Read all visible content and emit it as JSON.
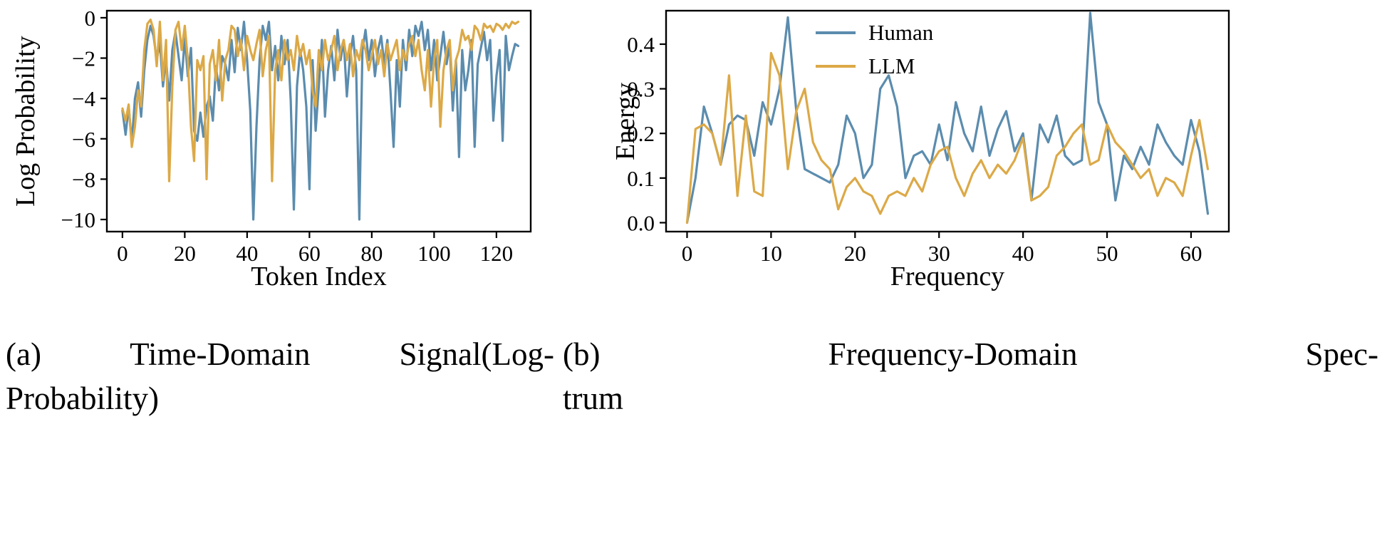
{
  "colors": {
    "human": "#5b8cae",
    "llm": "#dca947",
    "axis": "#000000",
    "background": "#ffffff"
  },
  "captions": {
    "a": {
      "line1": "(a) Time-Domain Signal(Log-",
      "line2": "Probability)"
    },
    "b": {
      "line1": "(b) Frequency-Domain Spec-",
      "line2": "trum"
    }
  },
  "chart_data": [
    {
      "id": "time-domain",
      "type": "line",
      "title": "",
      "xlabel": "Token Index",
      "ylabel": "Log Probability",
      "xlim": [
        -5,
        131
      ],
      "ylim": [
        -10.6,
        0.35
      ],
      "grid": false,
      "legend": null,
      "xticks": [
        {
          "v": 0,
          "label": "0"
        },
        {
          "v": 20,
          "label": "20"
        },
        {
          "v": 40,
          "label": "40"
        },
        {
          "v": 60,
          "label": "60"
        },
        {
          "v": 80,
          "label": "80"
        },
        {
          "v": 100,
          "label": "100"
        },
        {
          "v": 120,
          "label": "120"
        }
      ],
      "yticks": [
        {
          "v": 0,
          "label": "0"
        },
        {
          "v": -2,
          "label": "−2"
        },
        {
          "v": -4,
          "label": "−4"
        },
        {
          "v": -6,
          "label": "−6"
        },
        {
          "v": -8,
          "label": "−8"
        },
        {
          "v": -10,
          "label": "−10"
        }
      ],
      "series": [
        {
          "name": "Human",
          "color": "#5b8cae",
          "values": [
            -4.6,
            -5.8,
            -4.4,
            -6.2,
            -4.0,
            -3.2,
            -4.9,
            -2.6,
            -1.1,
            -0.4,
            -0.9,
            -2.1,
            -1.2,
            -3.4,
            -2.0,
            -4.1,
            -1.6,
            -0.7,
            -1.9,
            -3.1,
            -1.0,
            -2.9,
            -1.5,
            -5.6,
            -6.1,
            -4.7,
            -5.9,
            -4.4,
            -3.9,
            -5.1,
            -2.4,
            -3.6,
            -1.9,
            -2.3,
            -3.1,
            -1.1,
            -2.7,
            -0.5,
            -1.6,
            -0.2,
            -2.1,
            -4.6,
            -10.0,
            -5.4,
            -2.1,
            -0.4,
            -1.1,
            -0.2,
            -2.6,
            -1.4,
            -3.1,
            -0.9,
            -2.3,
            -1.1,
            -4.1,
            -9.5,
            -3.4,
            -1.6,
            -2.6,
            -4.4,
            -8.5,
            -2.1,
            -5.6,
            -3.4,
            -1.1,
            -4.9,
            -2.6,
            -1.4,
            -3.1,
            -0.6,
            -2.1,
            -1.1,
            -3.9,
            -1.9,
            -0.9,
            -2.6,
            -10.0,
            -1.6,
            -0.6,
            -2.1,
            -1.1,
            -2.9,
            -1.6,
            -0.9,
            -2.3,
            -1.1,
            -3.6,
            -6.4,
            -2.1,
            -4.4,
            -1.1,
            -2.6,
            -0.6,
            -1.9,
            -0.4,
            -0.9,
            -0.2,
            -1.6,
            -0.6,
            -2.6,
            -1.1,
            -3.1,
            -1.9,
            -0.7,
            -2.3,
            -1.3,
            -4.6,
            -2.1,
            -6.9,
            -1.6,
            -3.6,
            -2.6,
            -1.1,
            -6.4,
            -2.3,
            -1.5,
            -0.7,
            -2.1,
            -1.1,
            -5.1,
            -2.9,
            -1.6,
            -6.1,
            -0.9,
            -2.6,
            -1.9,
            -1.3,
            -1.4
          ]
        },
        {
          "name": "LLM",
          "color": "#dca947",
          "values": [
            -4.5,
            -5.1,
            -4.3,
            -6.4,
            -5.4,
            -3.6,
            -4.4,
            -1.6,
            -0.3,
            -0.1,
            -0.6,
            -2.4,
            -0.2,
            -3.1,
            -1.1,
            -8.1,
            -3.4,
            -0.6,
            -0.2,
            -1.6,
            -0.4,
            -2.1,
            -5.4,
            -7.1,
            -2.1,
            -2.6,
            -1.9,
            -8.0,
            -2.3,
            -1.6,
            -3.1,
            -1.1,
            -4.1,
            -2.1,
            -1.6,
            -0.4,
            -0.6,
            -1.9,
            -1.1,
            -2.6,
            -0.9,
            -1.6,
            -2.1,
            -1.3,
            -0.6,
            -2.9,
            -1.6,
            -0.9,
            -8.1,
            -2.6,
            -1.6,
            -3.1,
            -1.1,
            -2.1,
            -1.6,
            -2.6,
            -0.9,
            -1.9,
            -1.3,
            -2.3,
            -1.6,
            -3.6,
            -4.4,
            -1.6,
            -2.6,
            -1.1,
            -2.1,
            -1.6,
            -0.9,
            -2.6,
            -1.6,
            -1.1,
            -2.1,
            -1.3,
            -2.9,
            -1.6,
            -2.1,
            -1.1,
            -1.6,
            -2.6,
            -1.9,
            -1.1,
            -2.3,
            -1.6,
            -2.9,
            -1.3,
            -2.1,
            -1.6,
            -1.1,
            -2.6,
            -1.6,
            -2.1,
            -1.3,
            -0.9,
            -1.9,
            -1.1,
            -2.6,
            -3.6,
            -1.6,
            -4.4,
            -2.1,
            -1.1,
            -5.4,
            -2.6,
            -1.6,
            -1.1,
            -3.6,
            -2.1,
            -1.6,
            -0.6,
            -1.1,
            -0.9,
            -1.6,
            -0.4,
            -0.6,
            -1.1,
            -0.3,
            -0.5,
            -0.4,
            -0.7,
            -0.3,
            -0.4,
            -0.6,
            -0.3,
            -0.5,
            -0.2,
            -0.3,
            -0.2
          ]
        }
      ]
    },
    {
      "id": "frequency-domain",
      "type": "line",
      "title": "",
      "xlabel": "Frequency",
      "ylabel": "Energy",
      "xlim": [
        -2.5,
        64.5
      ],
      "ylim": [
        -0.02,
        0.475
      ],
      "grid": false,
      "legend": {
        "position": "upper center",
        "entries": [
          "Human",
          "LLM"
        ]
      },
      "xticks": [
        {
          "v": 0,
          "label": "0"
        },
        {
          "v": 10,
          "label": "10"
        },
        {
          "v": 20,
          "label": "20"
        },
        {
          "v": 30,
          "label": "30"
        },
        {
          "v": 40,
          "label": "40"
        },
        {
          "v": 50,
          "label": "50"
        },
        {
          "v": 60,
          "label": "60"
        }
      ],
      "yticks": [
        {
          "v": 0.0,
          "label": "0.0"
        },
        {
          "v": 0.1,
          "label": "0.1"
        },
        {
          "v": 0.2,
          "label": "0.2"
        },
        {
          "v": 0.3,
          "label": "0.3"
        },
        {
          "v": 0.4,
          "label": "0.4"
        }
      ],
      "series": [
        {
          "name": "Human",
          "color": "#5b8cae",
          "values": [
            0.0,
            0.1,
            0.26,
            0.2,
            0.13,
            0.22,
            0.24,
            0.23,
            0.15,
            0.27,
            0.22,
            0.3,
            0.46,
            0.25,
            0.12,
            0.11,
            0.1,
            0.09,
            0.13,
            0.24,
            0.2,
            0.1,
            0.13,
            0.3,
            0.33,
            0.26,
            0.1,
            0.15,
            0.16,
            0.13,
            0.22,
            0.14,
            0.27,
            0.2,
            0.16,
            0.26,
            0.15,
            0.21,
            0.25,
            0.16,
            0.2,
            0.05,
            0.22,
            0.18,
            0.24,
            0.15,
            0.13,
            0.14,
            0.47,
            0.27,
            0.22,
            0.05,
            0.15,
            0.12,
            0.17,
            0.13,
            0.22,
            0.18,
            0.15,
            0.13,
            0.23,
            0.16,
            0.02
          ]
        },
        {
          "name": "LLM",
          "color": "#dca947",
          "values": [
            0.0,
            0.21,
            0.22,
            0.2,
            0.13,
            0.33,
            0.06,
            0.24,
            0.07,
            0.06,
            0.38,
            0.33,
            0.12,
            0.25,
            0.3,
            0.18,
            0.14,
            0.12,
            0.03,
            0.08,
            0.1,
            0.07,
            0.06,
            0.02,
            0.06,
            0.07,
            0.06,
            0.1,
            0.07,
            0.13,
            0.16,
            0.17,
            0.1,
            0.06,
            0.11,
            0.14,
            0.1,
            0.13,
            0.11,
            0.14,
            0.19,
            0.05,
            0.06,
            0.08,
            0.15,
            0.17,
            0.2,
            0.22,
            0.13,
            0.14,
            0.22,
            0.18,
            0.16,
            0.13,
            0.1,
            0.12,
            0.06,
            0.1,
            0.09,
            0.06,
            0.15,
            0.23,
            0.12
          ]
        }
      ]
    }
  ]
}
